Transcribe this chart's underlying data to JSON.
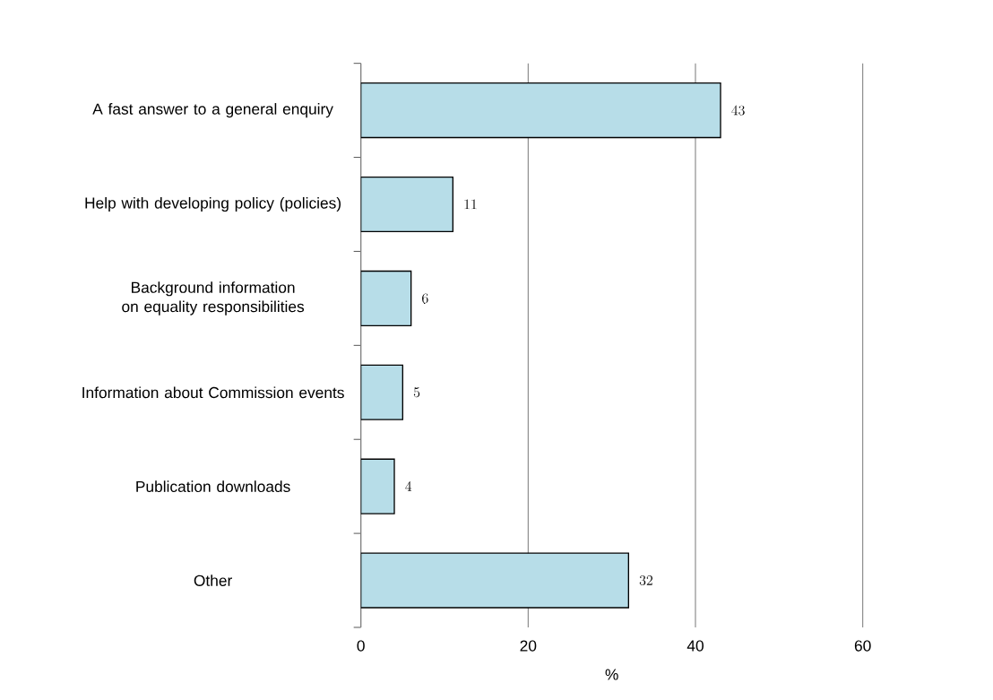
{
  "chart_data": {
    "type": "bar",
    "orientation": "horizontal",
    "xlabel": "%",
    "categories": [
      "A fast answer to a general enquiry",
      "Help with developing policy (policies)",
      "Background information on equality responsibilities",
      "Information about Commission events",
      "Publication downloads",
      "Other"
    ],
    "values": [
      43,
      11,
      6,
      5,
      4,
      32
    ],
    "color": "#b7dde8",
    "xlim": [
      0,
      60
    ],
    "xticks": [
      0,
      20,
      40,
      60
    ],
    "grid": "x",
    "data_labels": true
  }
}
